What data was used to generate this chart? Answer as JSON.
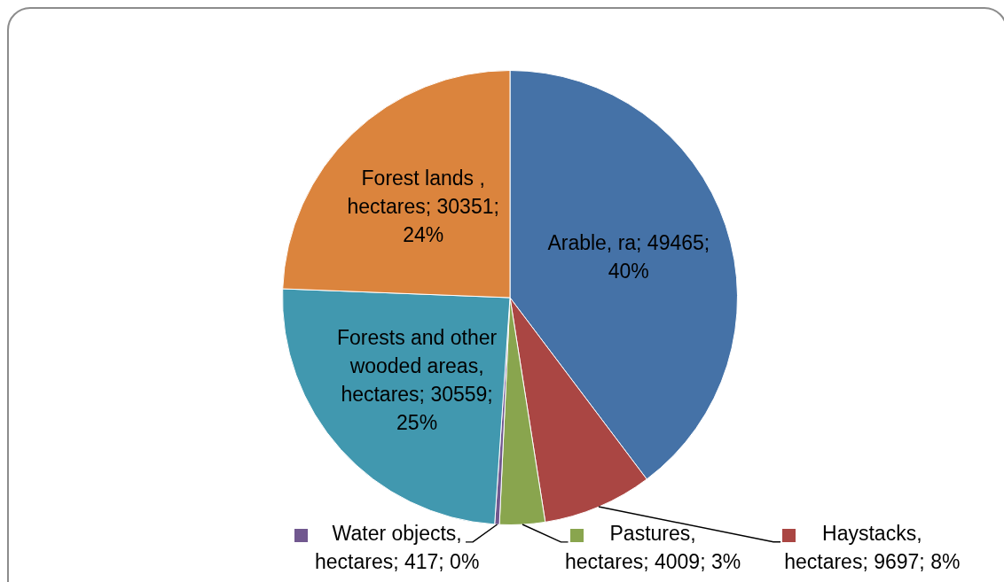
{
  "chart_data": {
    "type": "pie",
    "categories": [
      "Arable, ra",
      "Haystacks, hectares",
      "Pastures, hectares",
      "Water objects, hectares",
      "Forests and other wooded areas, hectares",
      "Forest lands , hectares"
    ],
    "values": [
      49465,
      9697,
      4009,
      417,
      30559,
      30351
    ],
    "value_labels": [
      "49465; 40%",
      "9697; 8%",
      "4009; 3%",
      "417; 0%",
      "30559; 25%",
      "30351; 24%"
    ],
    "colors": [
      "#4572a7",
      "#aa4643",
      "#89a54e",
      "#71588f",
      "#4198af",
      "#db843d"
    ],
    "legend": "bottom"
  }
}
